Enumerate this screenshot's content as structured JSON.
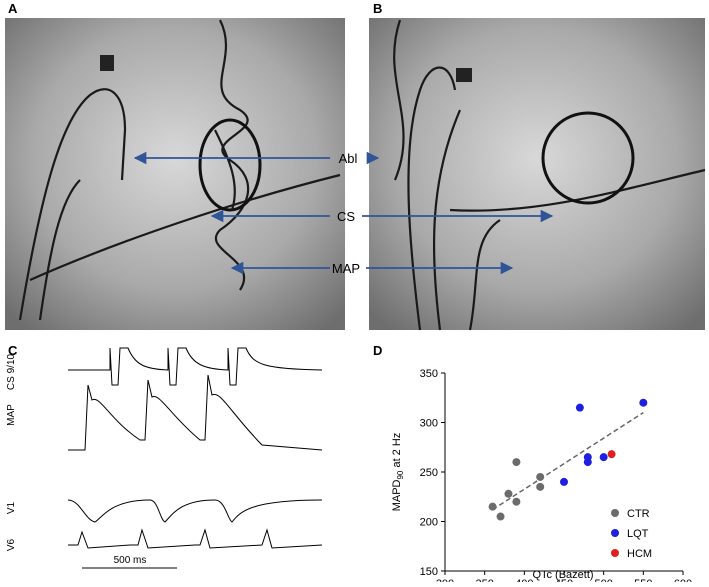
{
  "panels": {
    "labels": [
      "A",
      "B",
      "C",
      "D"
    ],
    "annotations": [
      "Abl",
      "CS",
      "MAP"
    ],
    "traces": [
      "CS 9/10",
      "MAP",
      "V1",
      "V6"
    ],
    "scale_bar": "500 ms"
  },
  "chart_data": {
    "type": "scatter",
    "xlabel": "QTc (Bazett)",
    "ylabel": [
      "MAPD",
      "90",
      " at 2 Hz"
    ],
    "xlim": [
      300,
      600
    ],
    "xticks": [
      300,
      350,
      400,
      450,
      500,
      550,
      600
    ],
    "ylim": [
      150,
      350
    ],
    "yticks": [
      150,
      200,
      250,
      300,
      350
    ],
    "series": [
      {
        "name": "CTR",
        "color": "#6b6b6b",
        "x": [
          360,
          370,
          380,
          390,
          390,
          420,
          420
        ],
        "values": [
          215,
          205,
          228,
          260,
          220,
          245,
          235
        ]
      },
      {
        "name": "LQT",
        "color": "#1f1fe0",
        "x": [
          470,
          480,
          480,
          500,
          450,
          550
        ],
        "values": [
          315,
          265,
          260,
          265,
          240,
          320
        ]
      },
      {
        "name": "HCM",
        "color": "#e01f1f",
        "x": [
          510
        ],
        "values": [
          268
        ]
      }
    ],
    "trendline": {
      "x": [
        360,
        550
      ],
      "y": [
        212,
        310
      ]
    },
    "legend": "lower right"
  }
}
